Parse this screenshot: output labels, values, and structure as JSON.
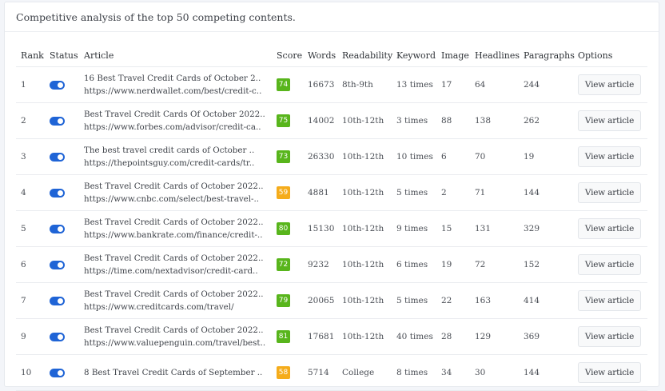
{
  "header": {
    "title": "Competitive analysis of the top 50 competing contents."
  },
  "table": {
    "columns": [
      "Rank",
      "Status",
      "Article",
      "Score",
      "Words",
      "Readability",
      "Keyword",
      "Image",
      "Headlines",
      "Paragraphs",
      "Options"
    ],
    "colors": {
      "score_good": "#58b51c",
      "score_medium": "#f5ac1b",
      "toggle_on": "#1f64d6"
    },
    "rows": [
      {
        "rank": "1",
        "status": "on",
        "title": "16 Best Travel Credit Cards of October 2..",
        "url": "https://www.nerdwallet.com/best/credit-c..",
        "score": "74",
        "score_level": "good",
        "words": "16673",
        "readability": "8th-9th",
        "keyword": "13 times",
        "image": "17",
        "headlines": "64",
        "paragraphs": "244",
        "option": "View article"
      },
      {
        "rank": "2",
        "status": "on",
        "title": "Best Travel Credit Cards Of October 2022..",
        "url": "https://www.forbes.com/advisor/credit-ca..",
        "score": "75",
        "score_level": "good",
        "words": "14002",
        "readability": "10th-12th",
        "keyword": "3 times",
        "image": "88",
        "headlines": "138",
        "paragraphs": "262",
        "option": "View article"
      },
      {
        "rank": "3",
        "status": "on",
        "title": "The best travel credit cards of October ..",
        "url": "https://thepointsguy.com/credit-cards/tr..",
        "score": "73",
        "score_level": "good",
        "words": "26330",
        "readability": "10th-12th",
        "keyword": "10 times",
        "image": "6",
        "headlines": "70",
        "paragraphs": "19",
        "option": "View article"
      },
      {
        "rank": "4",
        "status": "on",
        "title": "Best Travel Credit Cards of October 2022..",
        "url": "https://www.cnbc.com/select/best-travel-..",
        "score": "59",
        "score_level": "medium",
        "words": "4881",
        "readability": "10th-12th",
        "keyword": "5 times",
        "image": "2",
        "headlines": "71",
        "paragraphs": "144",
        "option": "View article"
      },
      {
        "rank": "5",
        "status": "on",
        "title": "Best Travel Credit Cards of October 2022..",
        "url": "https://www.bankrate.com/finance/credit-..",
        "score": "80",
        "score_level": "good",
        "words": "15130",
        "readability": "10th-12th",
        "keyword": "9 times",
        "image": "15",
        "headlines": "131",
        "paragraphs": "329",
        "option": "View article"
      },
      {
        "rank": "6",
        "status": "on",
        "title": "Best Travel Credit Cards of October 2022..",
        "url": "https://time.com/nextadvisor/credit-card..",
        "score": "72",
        "score_level": "good",
        "words": "9232",
        "readability": "10th-12th",
        "keyword": "6 times",
        "image": "19",
        "headlines": "72",
        "paragraphs": "152",
        "option": "View article"
      },
      {
        "rank": "7",
        "status": "on",
        "title": "Best Travel Credit Cards of October 2022..",
        "url": "https://www.creditcards.com/travel/",
        "score": "79",
        "score_level": "good",
        "words": "20065",
        "readability": "10th-12th",
        "keyword": "5 times",
        "image": "22",
        "headlines": "163",
        "paragraphs": "414",
        "option": "View article"
      },
      {
        "rank": "9",
        "status": "on",
        "title": "Best Travel Credit Cards of October 2022..",
        "url": "https://www.valuepenguin.com/travel/best..",
        "score": "81",
        "score_level": "good",
        "words": "17681",
        "readability": "10th-12th",
        "keyword": "40 times",
        "image": "28",
        "headlines": "129",
        "paragraphs": "369",
        "option": "View article"
      },
      {
        "rank": "10",
        "status": "on",
        "title": "8 Best Travel Credit Cards of September ..",
        "url": "",
        "score": "58",
        "score_level": "medium",
        "words": "5714",
        "readability": "College",
        "keyword": "8 times",
        "image": "34",
        "headlines": "30",
        "paragraphs": "144",
        "option": "View article"
      }
    ]
  }
}
